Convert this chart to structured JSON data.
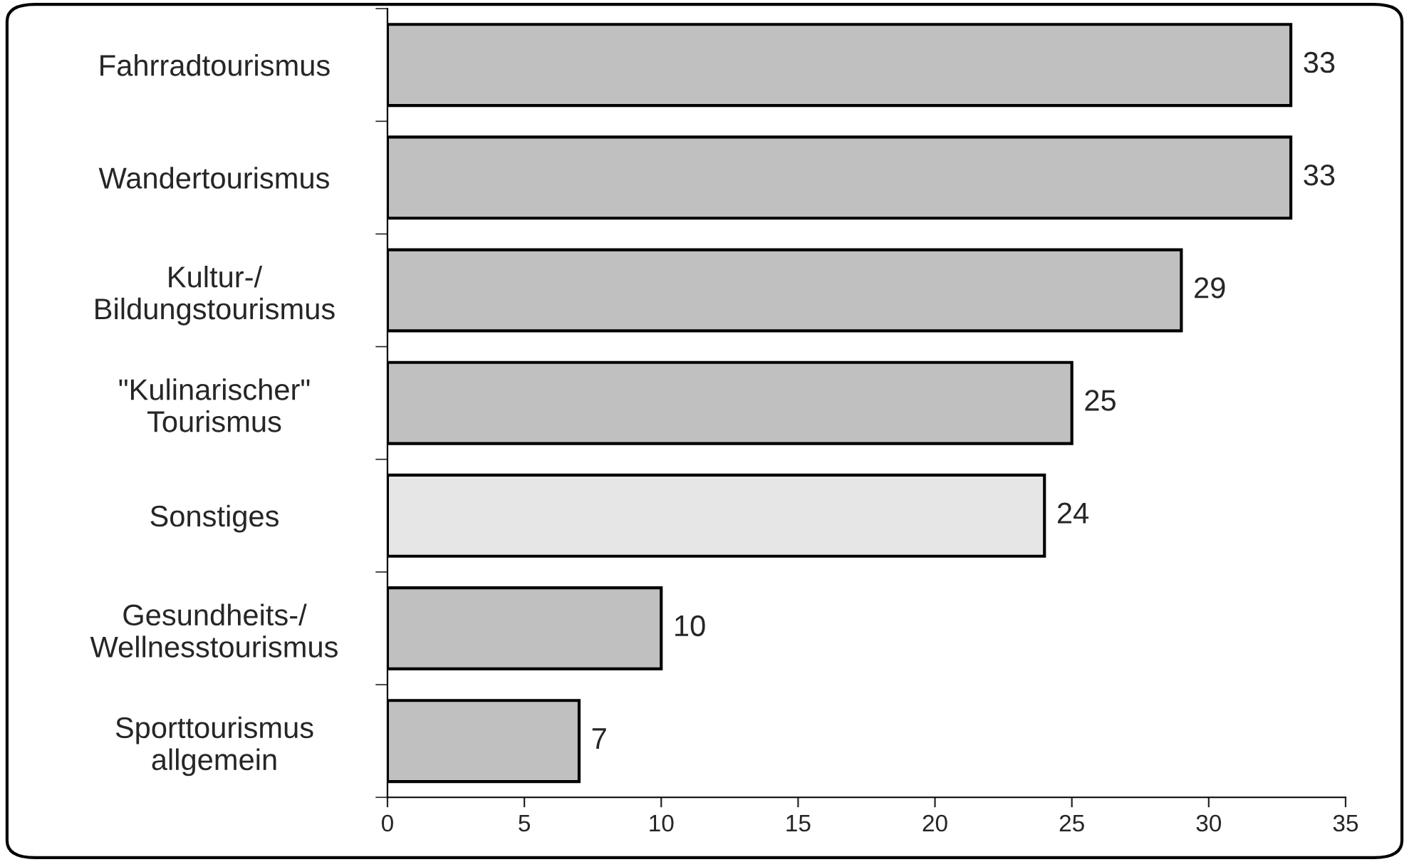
{
  "chart_data": {
    "type": "bar",
    "orientation": "horizontal",
    "categories": [
      "Fahrradtourismus",
      "Wandertourismus",
      "Kultur-/\nBildungstourismus",
      "\"Kulinarischer\"\nTourismus",
      "Sonstiges",
      "Gesundheits-/\nWellnesstourismus",
      "Sporttourismus\nallgemein"
    ],
    "values": [
      33,
      33,
      29,
      25,
      24,
      10,
      7
    ],
    "colors": [
      "#c0c0c0",
      "#c0c0c0",
      "#c0c0c0",
      "#c0c0c0",
      "#e6e6e6",
      "#c0c0c0",
      "#c0c0c0"
    ],
    "xlim": [
      0,
      35
    ],
    "xticks": [
      0,
      5,
      10,
      15,
      20,
      25,
      30,
      35
    ],
    "data_labels": true,
    "grid": false,
    "legend": false
  }
}
